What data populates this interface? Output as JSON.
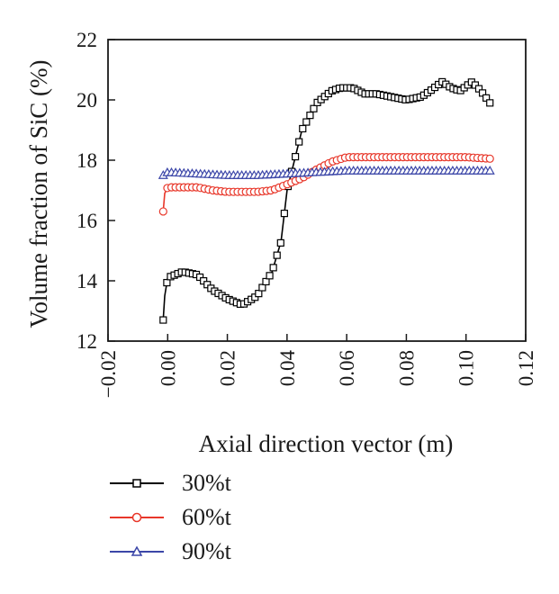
{
  "chart_data": {
    "type": "line",
    "xlabel": "Axial direction vector (m)",
    "ylabel": "Volume fraction of SiC (%)",
    "xlim": [
      -0.02,
      0.12
    ],
    "ylim": [
      12,
      22
    ],
    "xticks": [
      "−0.02",
      "0.00",
      "0.02",
      "0.04",
      "0.06",
      "0.08",
      "0.10",
      "0.12"
    ],
    "yticks": [
      "12",
      "14",
      "16",
      "18",
      "20",
      "22"
    ],
    "grid": false,
    "legend_position": "bottom-left",
    "series": [
      {
        "name": "30%t",
        "color": "#000000",
        "marker": "square",
        "x": [
          -0.0015,
          -0.001,
          0.0,
          0.005,
          0.01,
          0.015,
          0.02,
          0.025,
          0.03,
          0.035,
          0.038,
          0.04,
          0.045,
          0.05,
          0.055,
          0.058,
          0.062,
          0.066,
          0.07,
          0.075,
          0.08,
          0.085,
          0.088,
          0.092,
          0.095,
          0.098,
          0.102,
          0.105,
          0.108
        ],
        "y": [
          12.7,
          13.5,
          14.1,
          14.3,
          14.2,
          13.7,
          13.4,
          13.2,
          13.5,
          14.3,
          15.3,
          17.0,
          19.0,
          19.9,
          20.3,
          20.4,
          20.4,
          20.2,
          20.2,
          20.1,
          20.0,
          20.1,
          20.3,
          20.6,
          20.4,
          20.3,
          20.6,
          20.3,
          19.9
        ]
      },
      {
        "name": "60%t",
        "color": "#e8372a",
        "marker": "circle",
        "x": [
          -0.0015,
          -0.001,
          0.0,
          0.005,
          0.01,
          0.015,
          0.02,
          0.025,
          0.03,
          0.035,
          0.04,
          0.045,
          0.05,
          0.055,
          0.06,
          0.065,
          0.07,
          0.08,
          0.09,
          0.1,
          0.108
        ],
        "y": [
          16.3,
          16.9,
          17.1,
          17.1,
          17.1,
          17.0,
          16.95,
          16.95,
          16.95,
          17.0,
          17.2,
          17.4,
          17.7,
          17.95,
          18.1,
          18.1,
          18.1,
          18.1,
          18.1,
          18.1,
          18.05
        ]
      },
      {
        "name": "90%t",
        "color": "#3b46a8",
        "marker": "triangle",
        "x": [
          -0.0015,
          0.0,
          0.01,
          0.02,
          0.03,
          0.04,
          0.05,
          0.06,
          0.07,
          0.08,
          0.09,
          0.1,
          0.108
        ],
        "y": [
          17.5,
          17.6,
          17.55,
          17.5,
          17.5,
          17.55,
          17.6,
          17.65,
          17.65,
          17.65,
          17.65,
          17.65,
          17.65
        ]
      }
    ]
  }
}
